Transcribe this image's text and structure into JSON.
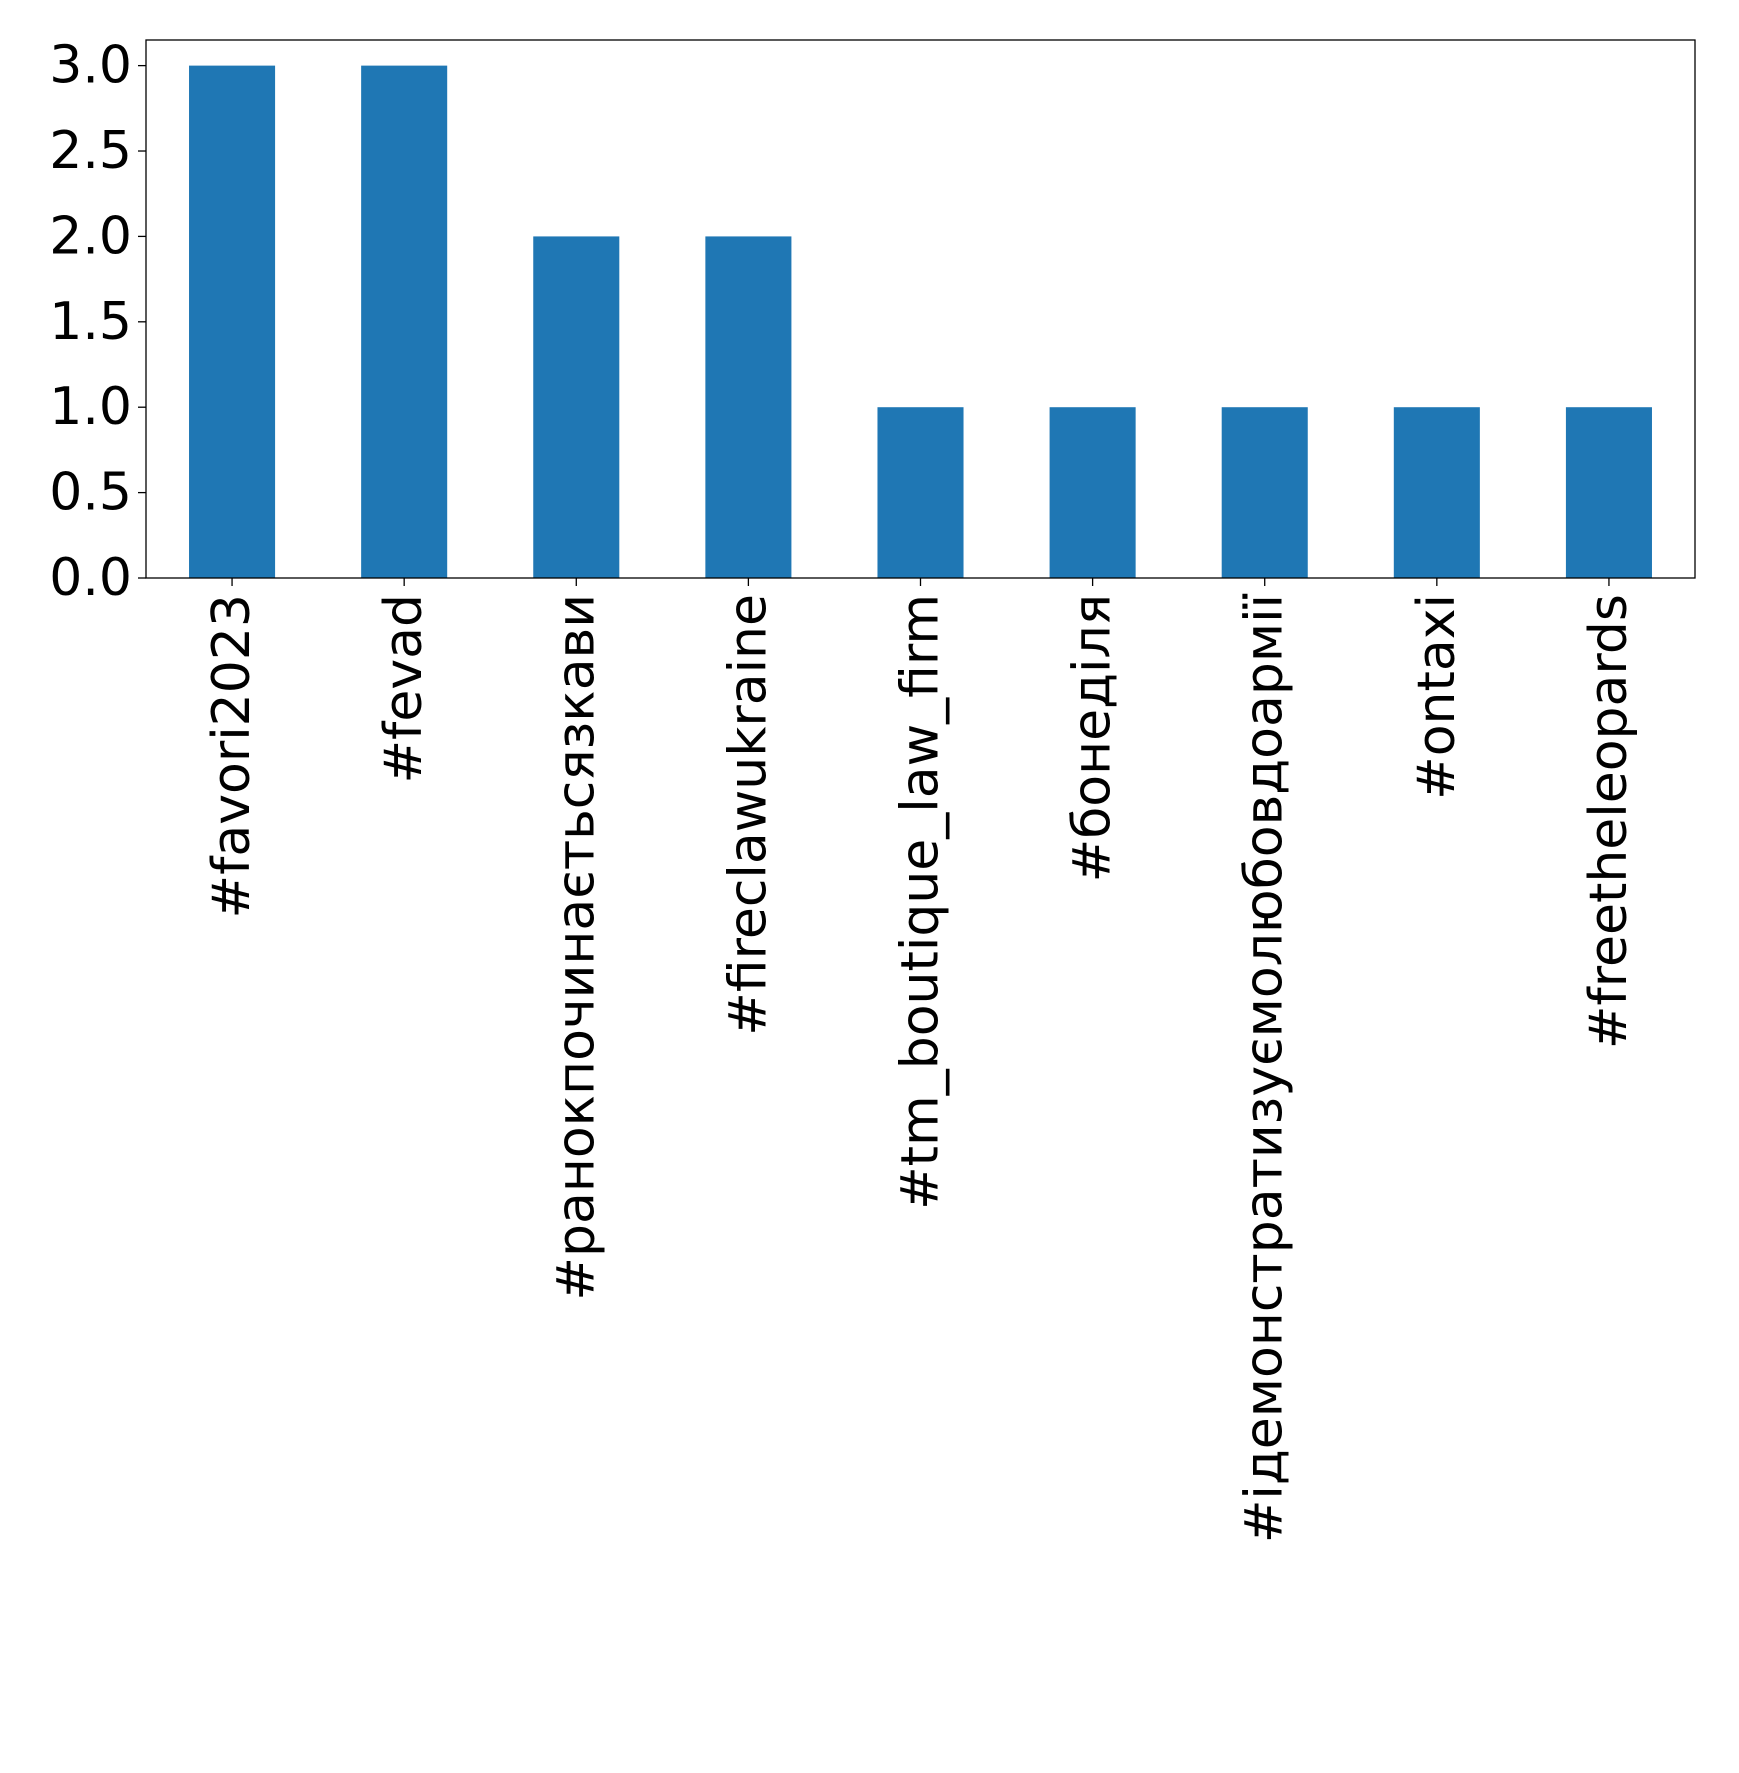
{
  "chart_data": {
    "type": "bar",
    "title": "",
    "xlabel": "",
    "ylabel": "",
    "categories": [
      "#favori2023",
      "#fevad",
      "#ранокпочинаєтьсязкави",
      "#fireclawukraine",
      "#tm_boutique_law_firm",
      "#бонеділя",
      "#ідемонстратизуємолюбовдоармії",
      "#ontaxi",
      "#freetheleopards"
    ],
    "values": [
      3,
      3,
      2,
      2,
      1,
      1,
      1,
      1,
      1
    ],
    "ylim": [
      0,
      3.15
    ],
    "yticks": [
      "0.0",
      "0.5",
      "1.0",
      "1.5",
      "2.0",
      "2.5",
      "3.0"
    ],
    "bar_color": "#1f77b4",
    "grid": false,
    "legend": "none"
  }
}
